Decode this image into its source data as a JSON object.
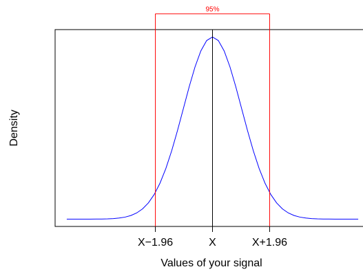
{
  "chart_data": {
    "type": "line",
    "xlabel": "Values of your signal",
    "ylabel": "Density",
    "x": [
      -5,
      -4.8,
      -4.6,
      -4.4,
      -4.2,
      -4,
      -3.8,
      -3.6,
      -3.4,
      -3.2,
      -3,
      -2.8,
      -2.6,
      -2.4,
      -2.2,
      -2,
      -1.8,
      -1.6,
      -1.4,
      -1.2,
      -1,
      -0.8,
      -0.6,
      -0.4,
      -0.2,
      0,
      0.2,
      0.4,
      0.6,
      0.8,
      1,
      1.2,
      1.4,
      1.6,
      1.8,
      2,
      2.2,
      2.4,
      2.6,
      2.8,
      3,
      3.2,
      3.4,
      3.6,
      3.8,
      4,
      4.2,
      4.4,
      4.6,
      4.8,
      5
    ],
    "series": [
      {
        "color": "#0000ff",
        "values": [
          1.5e-06,
          4e-06,
          1e-05,
          2.5e-05,
          5.9e-05,
          0.000134,
          0.000292,
          0.000612,
          0.001232,
          0.002384,
          0.004432,
          0.007916,
          0.013583,
          0.022395,
          0.035475,
          0.053991,
          0.07895,
          0.110921,
          0.149727,
          0.194186,
          0.241971,
          0.289692,
          0.333225,
          0.36827,
          0.391043,
          0.398942,
          0.391043,
          0.36827,
          0.333225,
          0.289692,
          0.241971,
          0.194186,
          0.149727,
          0.110921,
          0.07895,
          0.053991,
          0.035475,
          0.022395,
          0.013583,
          0.007916,
          0.004432,
          0.002384,
          0.001232,
          0.000612,
          0.000292,
          0.000134,
          5.9e-05,
          2.5e-05,
          1e-05,
          4e-06,
          1.5e-06
        ]
      }
    ],
    "xlim": [
      -5.4,
      5.4
    ],
    "ylim": [
      -0.016,
      0.415
    ],
    "xticks": [
      {
        "value": -1.96,
        "label": "X−1.96"
      },
      {
        "value": 0,
        "label": "X"
      },
      {
        "value": 1.96,
        "label": "X+1.96"
      }
    ],
    "center_line": {
      "value": 0,
      "color": "#000000"
    },
    "interval": {
      "label": "95%",
      "lower": -1.96,
      "upper": 1.96,
      "color": "#ff0000"
    }
  }
}
